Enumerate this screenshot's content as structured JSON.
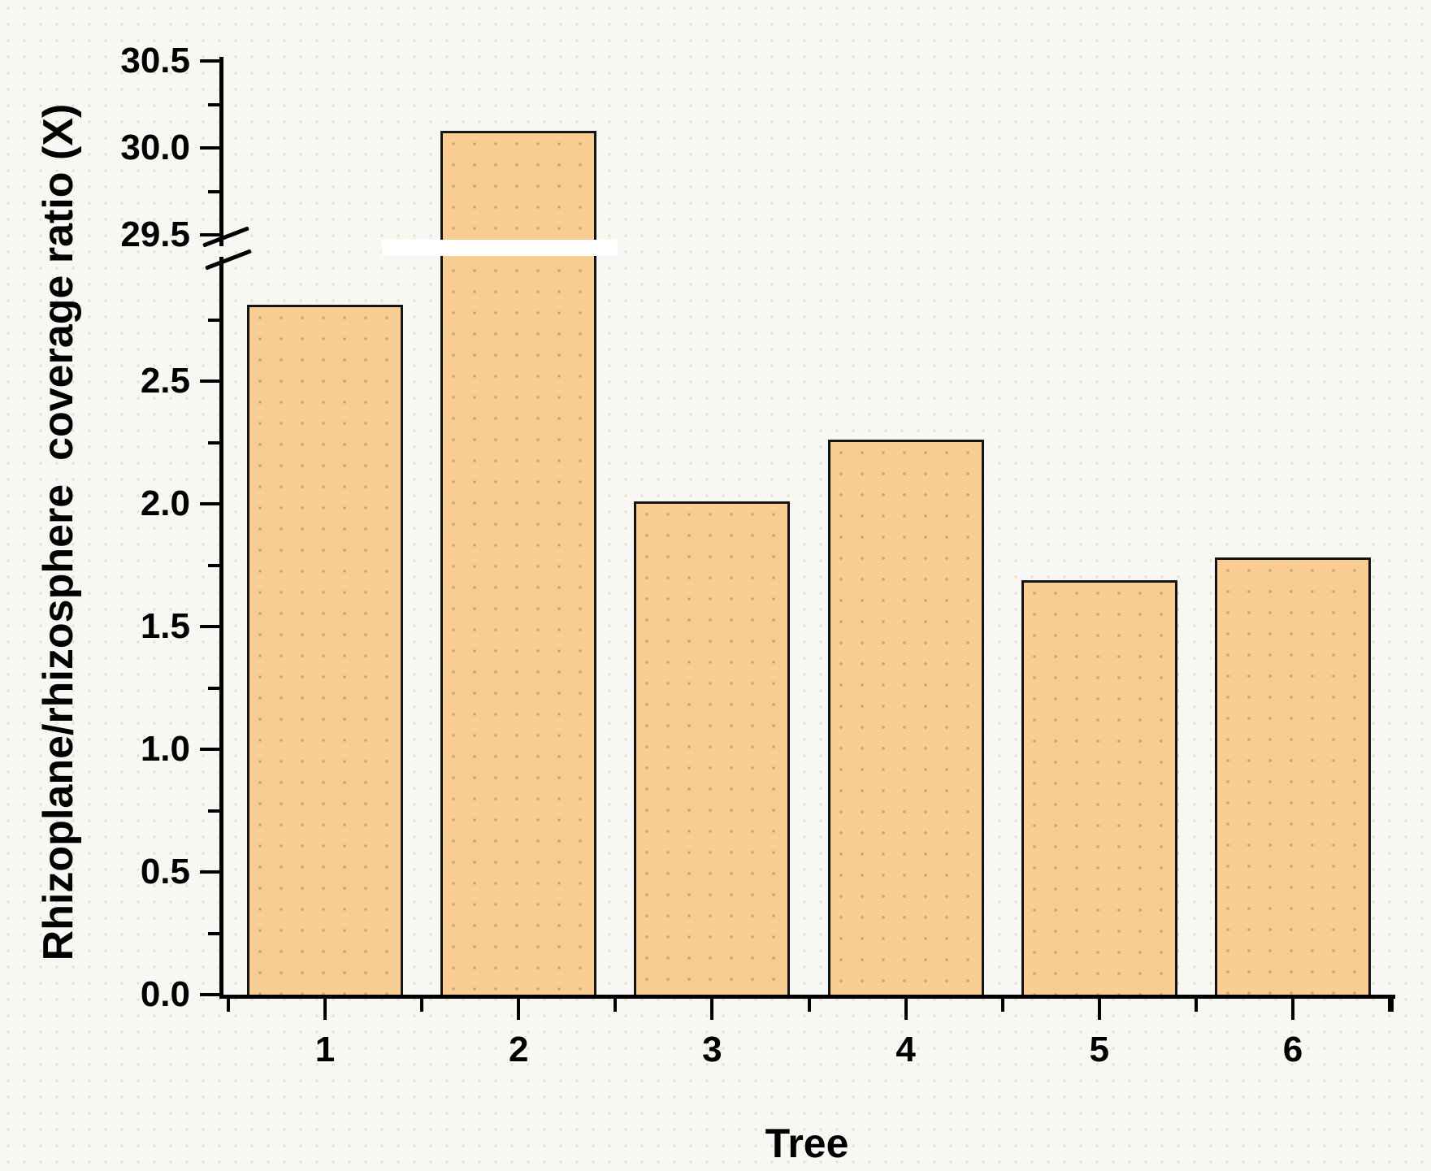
{
  "figure": {
    "background_color": "#f8f7f3",
    "kind": "scientific bar chart with broken y-axis"
  },
  "chart_data": {
    "type": "bar",
    "title": "",
    "categories": [
      "1",
      "2",
      "3",
      "4",
      "5",
      "6"
    ],
    "values": [
      2.81,
      30.1,
      2.01,
      2.26,
      1.69,
      1.78
    ],
    "xlabel": "Tree",
    "ylabel": "Rhizoplane/rhizosphere  coverage ratio (X)",
    "bar_fill_color": "#F9CD92",
    "bar_border_color": "#141414",
    "axis_color": "#000000",
    "grid": false,
    "legend": null,
    "y_axis": {
      "broken": true,
      "lower_segment_range": [
        0.0,
        3.0
      ],
      "upper_segment_range": [
        29.45,
        30.5
      ],
      "lower_major_ticks": [
        0.0,
        0.5,
        1.0,
        1.5,
        2.0,
        2.5
      ],
      "lower_major_tick_labels": [
        "0.0",
        "0.5",
        "1.0",
        "1.5",
        "2.0",
        "2.5"
      ],
      "lower_minor_ticks": [
        0.25,
        0.75,
        1.25,
        1.75,
        2.25,
        2.75
      ],
      "upper_major_ticks": [
        29.5,
        30.0,
        30.5
      ],
      "upper_major_tick_labels": [
        "29.5",
        "30.0",
        "30.5"
      ],
      "upper_minor_ticks": [
        29.75,
        30.25
      ],
      "break_band_color": "#ffffff"
    },
    "x_axis": {
      "major_tick_positions": [
        1,
        2,
        3,
        4,
        5,
        6
      ],
      "minor_ticks_between_categories": true
    }
  }
}
